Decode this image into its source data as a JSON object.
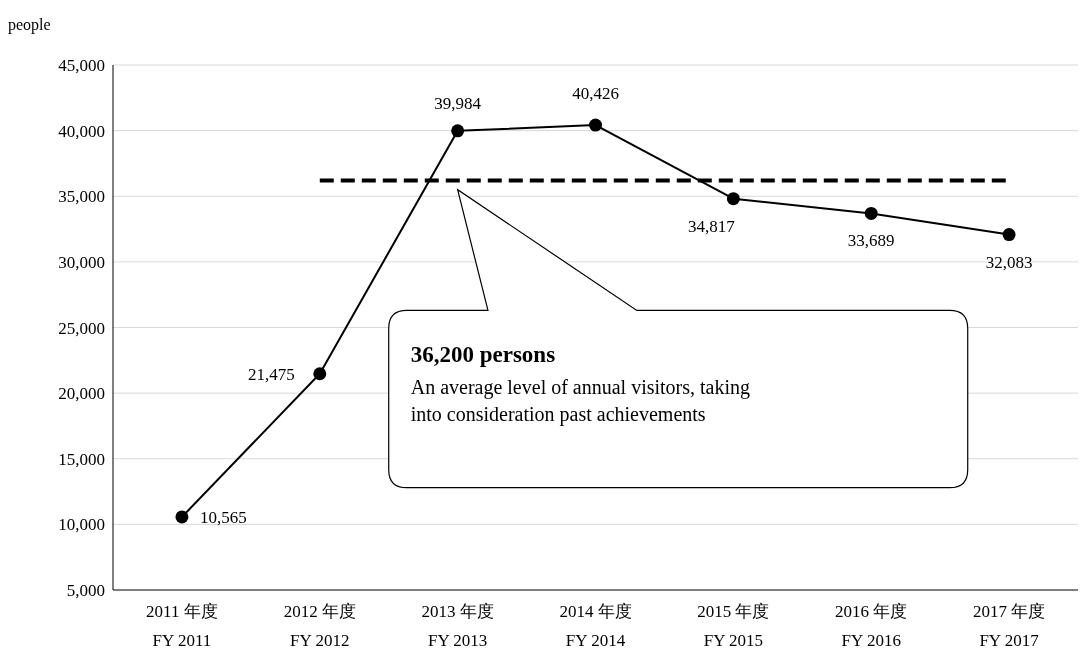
{
  "chart_data": {
    "type": "line",
    "ylabel": "people",
    "categories": [
      "2011 年度\nFY 2011",
      "2012 年度\nFY 2012",
      "2013 年度\nFY 2013",
      "2014 年度\nFY 2014",
      "2015 年度\nFY 2015",
      "2016 年度\nFY 2016",
      "2017 年度\nFY 2017"
    ],
    "series": [
      {
        "color": "#000000",
        "values": [
          10565,
          21475,
          39984,
          40426,
          34817,
          33689,
          32083
        ],
        "value_labels": [
          "10,565",
          "21,475",
          "39,984",
          "40,426",
          "34,817",
          "33,689",
          "32,083"
        ],
        "marker": "circle",
        "line_style": "solid"
      },
      {
        "color": "#000000",
        "values": [
          null,
          36200,
          36200,
          36200,
          36200,
          36200,
          36200
        ],
        "marker": "none",
        "line_style": "dashed"
      }
    ],
    "ylim": [
      5000,
      45000
    ],
    "yticks": [
      {
        "value": 5000,
        "label": "5,000"
      },
      {
        "value": 10000,
        "label": "10,000"
      },
      {
        "value": 15000,
        "label": "15,000"
      },
      {
        "value": 20000,
        "label": "20,000"
      },
      {
        "value": 25000,
        "label": "25,000"
      },
      {
        "value": 30000,
        "label": "30,000"
      },
      {
        "value": 35000,
        "label": "35,000"
      },
      {
        "value": 40000,
        "label": "40,000"
      },
      {
        "value": 45000,
        "label": "45,000"
      }
    ],
    "grid": "y",
    "annotations": [
      "36,200 persons",
      "An average level of annual visitors, taking into consideration past achievements"
    ]
  }
}
